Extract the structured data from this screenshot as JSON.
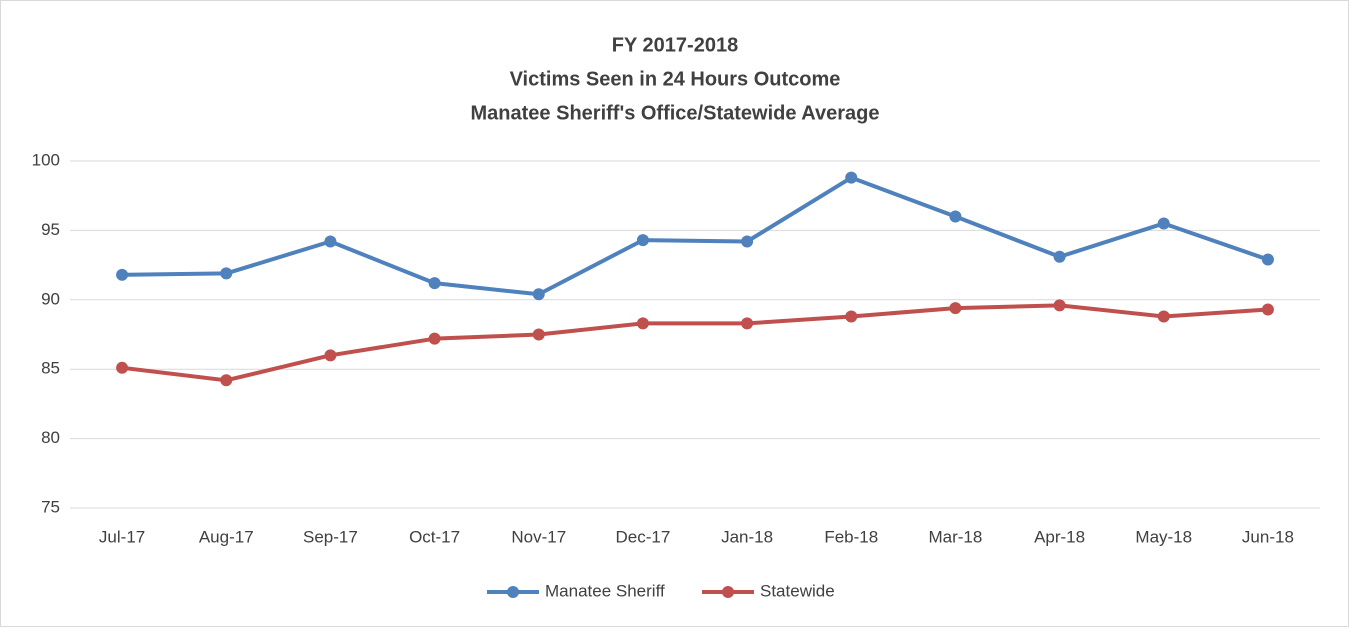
{
  "chart_data": {
    "type": "line",
    "title": [
      "FY 2017-2018",
      "Victims Seen in 24 Hours Outcome",
      "Manatee Sheriff's Office/Statewide Average"
    ],
    "categories": [
      "Jul-17",
      "Aug-17",
      "Sep-17",
      "Oct-17",
      "Nov-17",
      "Dec-17",
      "Jan-18",
      "Feb-18",
      "Mar-18",
      "Apr-18",
      "May-18",
      "Jun-18"
    ],
    "series": [
      {
        "name": "Manatee Sheriff",
        "color": "#4f81bd",
        "values": [
          91.8,
          91.9,
          94.2,
          91.2,
          90.4,
          94.3,
          94.2,
          98.8,
          96.0,
          93.1,
          95.5,
          92.9
        ]
      },
      {
        "name": "Statewide",
        "color": "#c0504d",
        "values": [
          85.1,
          84.2,
          86.0,
          87.2,
          87.5,
          88.3,
          88.3,
          88.8,
          89.4,
          89.6,
          88.8,
          89.3
        ]
      }
    ],
    "ylim": [
      75,
      100
    ],
    "yticks": [
      75,
      80,
      85,
      90,
      95,
      100
    ],
    "grid": true,
    "legend": "bottom"
  }
}
